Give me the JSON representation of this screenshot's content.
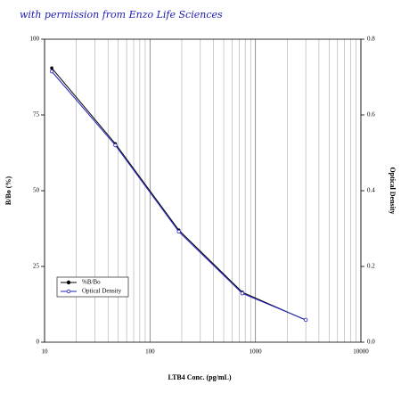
{
  "chart_data": {
    "type": "line",
    "annotation": "with permission from Enzo Life Sciences",
    "x_label": "LTB4 Conc. (pg/mL)",
    "y_label": "B/Bo (%)",
    "y2_label": "Optical Density",
    "x": [
      11.7,
      46.9,
      187.5,
      750,
      3000
    ],
    "series": [
      {
        "name": "%B/Bo",
        "color": "#000000",
        "values": [
          90.5,
          65.5,
          37,
          16.5,
          7.3
        ]
      },
      {
        "name": "Optical Density",
        "color": "#2020c0",
        "axis": "y2",
        "values": [
          0.715,
          0.52,
          0.292,
          0.129,
          0.059
        ]
      }
    ],
    "xlim": [
      10,
      10000
    ],
    "xticks": [
      10,
      100,
      1000,
      10000
    ],
    "x_log": true,
    "ylim": [
      0,
      100
    ],
    "yticks": [
      0,
      25,
      50,
      75,
      100
    ],
    "y2lim": [
      0,
      0.8
    ],
    "y2ticks": [
      {
        "value": 0,
        "label": "0.0"
      },
      0.2,
      0.4,
      0.6,
      0.8
    ],
    "grid": "x",
    "legend": "lower left"
  }
}
